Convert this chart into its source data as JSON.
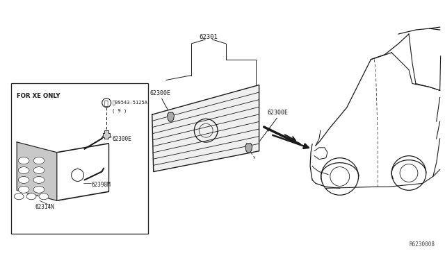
{
  "background_color": "#ffffff",
  "line_color": "#1a1a1a",
  "figsize": [
    6.4,
    3.72
  ],
  "dpi": 100,
  "watermark": "R6230008",
  "labels": {
    "box_title": "FOR XE ONLY",
    "screw_label1": "Ⓜ09543-5125A",
    "screw_label2": "( 9 )",
    "label_62301": "62301",
    "label_62300E_left": "62300E",
    "label_62300E_right": "62300E",
    "label_62300E_box": "62300E",
    "label_62398M": "62398M",
    "label_62314N": "62314N"
  }
}
